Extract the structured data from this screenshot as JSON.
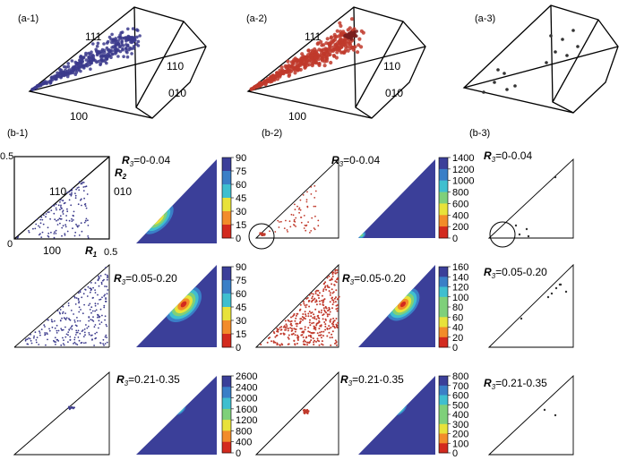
{
  "panel_labels": {
    "a1": "(a-1)",
    "a2": "(a-2)",
    "a3": "(a-3)",
    "b1": "(b-1)",
    "b2": "(b-2)",
    "b3": "(b-3)"
  },
  "orientation_labels": {
    "p111": "111",
    "p110": "110",
    "p010": "010",
    "p100": "100"
  },
  "axes": {
    "top_tick": "0.5",
    "right_tick": "0.5",
    "origin": "0",
    "x_symbol": "R",
    "x_sub": "1",
    "y_symbol": "R",
    "y_sub": "2"
  },
  "row_labels": {
    "r_symbol": "R",
    "r_sub": "3",
    "row1": "=0-0.04",
    "row2": "=0.05-0.20",
    "row3": "=0.21-0.35"
  },
  "colorbars": {
    "b1_row1": [
      "90",
      "75",
      "60",
      "45",
      "30",
      "15",
      "0"
    ],
    "b1_row2": [
      "90",
      "75",
      "60",
      "45",
      "30",
      "15",
      "0"
    ],
    "b1_row3": [
      "2600",
      "2400",
      "2000",
      "1600",
      "1200",
      "800",
      "400",
      "0"
    ],
    "b2_row1": [
      "1400",
      "1200",
      "1000",
      "800",
      "600",
      "400",
      "200",
      "0"
    ],
    "b2_row2": [
      "160",
      "140",
      "120",
      "100",
      "80",
      "60",
      "40",
      "20",
      "0"
    ],
    "b2_row3": [
      "800",
      "700",
      "600",
      "500",
      "400",
      "300",
      "200",
      "100",
      "0"
    ]
  },
  "colors": {
    "blue_points": "#3b3a8c",
    "red_points": "#c0392b",
    "dark_points": "#333333",
    "contour_bg": "#3b3f99"
  }
}
